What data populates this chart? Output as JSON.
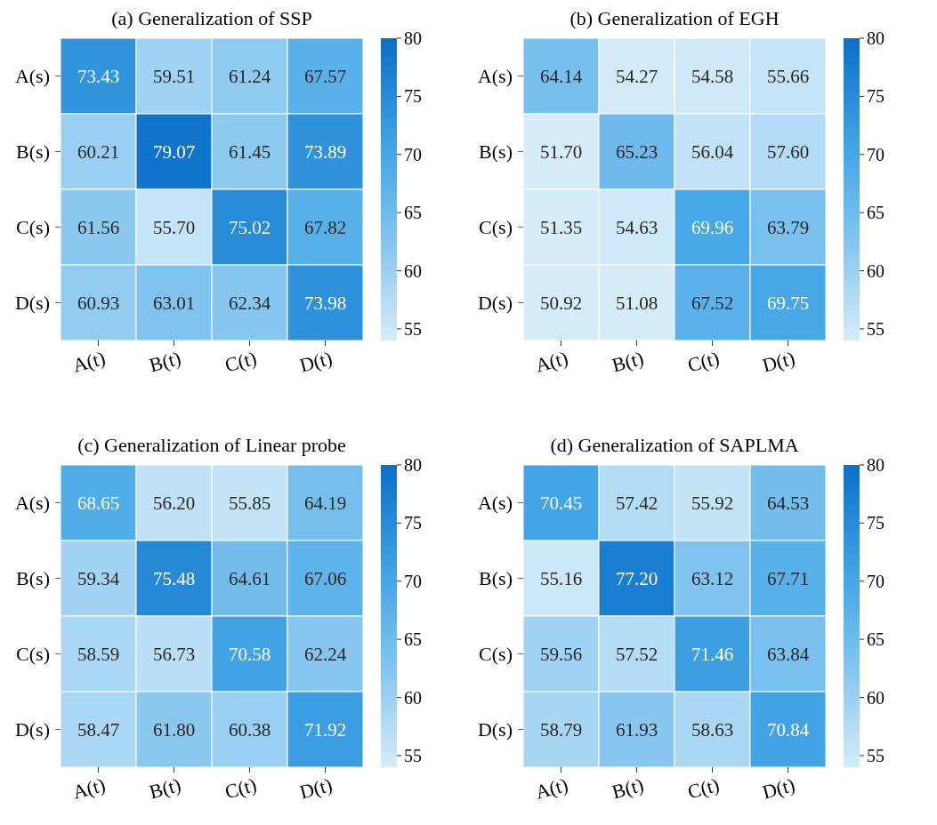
{
  "chart_data": [
    {
      "type": "heatmap",
      "title": "(a) Generalization of SSP",
      "categories": [
        "A(t)",
        "B(t)",
        "C(t)",
        "D(t)"
      ],
      "y_categories": [
        "A(s)",
        "B(s)",
        "C(s)",
        "D(s)"
      ],
      "cells": [
        [
          73.43,
          59.51,
          61.24,
          67.57
        ],
        [
          60.21,
          79.07,
          61.45,
          73.89
        ],
        [
          61.56,
          55.7,
          75.02,
          67.82
        ],
        [
          60.93,
          63.01,
          62.34,
          73.98
        ]
      ],
      "cell_labels": [
        [
          "73.43",
          "59.51",
          "61.24",
          "67.57"
        ],
        [
          "60.21",
          "79.07",
          "61.45",
          "73.89"
        ],
        [
          "61.56",
          "55.70",
          "75.02",
          "67.82"
        ],
        [
          "60.93",
          "63.01",
          "62.34",
          "73.98"
        ]
      ],
      "clim": [
        54,
        80
      ],
      "cticks": [
        55,
        60,
        65,
        70,
        75,
        80
      ]
    },
    {
      "type": "heatmap",
      "title": "(b) Generalization of EGH",
      "categories": [
        "A(t)",
        "B(t)",
        "C(t)",
        "D(t)"
      ],
      "y_categories": [
        "A(s)",
        "B(s)",
        "C(s)",
        "D(s)"
      ],
      "cells": [
        [
          64.14,
          54.27,
          54.58,
          55.66
        ],
        [
          51.7,
          65.23,
          56.04,
          57.6
        ],
        [
          51.35,
          54.63,
          69.96,
          63.79
        ],
        [
          50.92,
          51.08,
          67.52,
          69.75
        ]
      ],
      "cell_labels": [
        [
          "64.14",
          "54.27",
          "54.58",
          "55.66"
        ],
        [
          "51.70",
          "65.23",
          "56.04",
          "57.60"
        ],
        [
          "51.35",
          "54.63",
          "69.96",
          "63.79"
        ],
        [
          "50.92",
          "51.08",
          "67.52",
          "69.75"
        ]
      ],
      "clim": [
        54,
        80
      ],
      "cticks": [
        55,
        60,
        65,
        70,
        75,
        80
      ]
    },
    {
      "type": "heatmap",
      "title": "(c) Generalization of Linear probe",
      "categories": [
        "A(t)",
        "B(t)",
        "C(t)",
        "D(t)"
      ],
      "y_categories": [
        "A(s)",
        "B(s)",
        "C(s)",
        "D(s)"
      ],
      "cells": [
        [
          68.65,
          56.2,
          55.85,
          64.19
        ],
        [
          59.34,
          75.48,
          64.61,
          67.06
        ],
        [
          58.59,
          56.73,
          70.58,
          62.24
        ],
        [
          58.47,
          61.8,
          60.38,
          71.92
        ]
      ],
      "cell_labels": [
        [
          "68.65",
          "56.20",
          "55.85",
          "64.19"
        ],
        [
          "59.34",
          "75.48",
          "64.61",
          "67.06"
        ],
        [
          "58.59",
          "56.73",
          "70.58",
          "62.24"
        ],
        [
          "58.47",
          "61.80",
          "60.38",
          "71.92"
        ]
      ],
      "clim": [
        54,
        80
      ],
      "cticks": [
        55,
        60,
        65,
        70,
        75,
        80
      ]
    },
    {
      "type": "heatmap",
      "title": "(d) Generalization of SAPLMA",
      "categories": [
        "A(t)",
        "B(t)",
        "C(t)",
        "D(t)"
      ],
      "y_categories": [
        "A(s)",
        "B(s)",
        "C(s)",
        "D(s)"
      ],
      "cells": [
        [
          70.45,
          57.42,
          55.92,
          64.53
        ],
        [
          55.16,
          77.2,
          63.12,
          67.71
        ],
        [
          59.56,
          57.52,
          71.46,
          63.84
        ],
        [
          58.79,
          61.93,
          58.63,
          70.84
        ]
      ],
      "cell_labels": [
        [
          "70.45",
          "57.42",
          "55.92",
          "64.53"
        ],
        [
          "55.16",
          "77.20",
          "63.12",
          "67.71"
        ],
        [
          "59.56",
          "57.52",
          "71.46",
          "63.84"
        ],
        [
          "58.79",
          "61.93",
          "58.63",
          "70.84"
        ]
      ],
      "clim": [
        54,
        80
      ],
      "cticks": [
        55,
        60,
        65,
        70,
        75,
        80
      ]
    }
  ]
}
